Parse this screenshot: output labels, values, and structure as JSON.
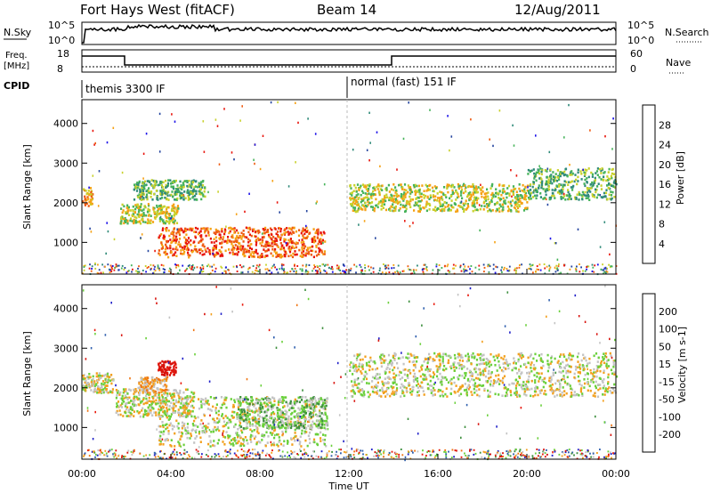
{
  "header": {
    "station": "Fort Hays West (fitACF)",
    "beam": "Beam 14",
    "date": "12/Aug/2011"
  },
  "top_panels": {
    "nsky_label": "N.Sky",
    "nsky_tick_top": "10^5",
    "nsky_tick_bottom": "10^0",
    "nsearch_label": "N.Search",
    "freq_label_1": "Freq.",
    "freq_label_2": "[MHz]",
    "freq_tick_top": "18",
    "freq_tick_bottom": "8",
    "nave_label": "Nave",
    "nave_tick_top": "60",
    "nave_tick_bottom": "0",
    "cpid_label": "CPID",
    "cpid_1": "themis 3300 IF",
    "cpid_2": "normal (fast) 151 IF"
  },
  "chart_data": [
    {
      "type": "heatmap",
      "name": "power",
      "ylabel": "Slant Range [km]",
      "xlabel": "Time UT",
      "yticks": [
        "1000",
        "2000",
        "3000",
        "4000"
      ],
      "ylim": [
        200,
        4600
      ],
      "colorbar_label": "Power [dB]",
      "colorbar_ticks": [
        "4",
        "8",
        "12",
        "16",
        "20",
        "24",
        "28"
      ],
      "colors": [
        "#1b10e8",
        "#24449e",
        "#2f8a79",
        "#46b35a",
        "#c8d12b",
        "#f5a114",
        "#ef5b12",
        "#e8130b"
      ],
      "series": [
        {
          "t0": 0.0,
          "t1": 0.45,
          "r0": 1900,
          "r1": 2400,
          "level": 5
        },
        {
          "t0": 1.7,
          "t1": 4.3,
          "r0": 1500,
          "r1": 2000,
          "level": 4
        },
        {
          "t0": 2.3,
          "t1": 5.5,
          "r0": 2100,
          "r1": 2600,
          "level": 3
        },
        {
          "t0": 3.4,
          "t1": 10.9,
          "r0": 650,
          "r1": 1400,
          "level": 6
        },
        {
          "t0": 12.0,
          "t1": 20.0,
          "r0": 1800,
          "r1": 2500,
          "level": 4
        },
        {
          "t0": 20.0,
          "t1": 24.0,
          "r0": 2100,
          "r1": 2900,
          "level": 3
        }
      ]
    },
    {
      "type": "heatmap",
      "name": "velocity",
      "ylabel": "Slant Range [km]",
      "xlabel": "Time UT",
      "yticks": [
        "1000",
        "2000",
        "3000",
        "4000"
      ],
      "ylim": [
        200,
        4600
      ],
      "colorbar_label": "Velocity [m s-1]",
      "colorbar_ticks": [
        "200",
        "100",
        "50",
        "15",
        "-15",
        "-50",
        "-100",
        "-200"
      ],
      "colors": [
        "#1e1ec8",
        "#2f5fae",
        "#3d8f3e",
        "#6ad03b",
        "#c3c3c3",
        "#f2a01e",
        "#ef7614",
        "#e81a0c",
        "#d8120c"
      ],
      "series": [
        {
          "t0": 0.0,
          "t1": 1.4,
          "r0": 1900,
          "r1": 2400,
          "level": 4
        },
        {
          "t0": 1.5,
          "t1": 5.0,
          "r0": 1300,
          "r1": 2000,
          "level": 4
        },
        {
          "t0": 3.4,
          "t1": 4.2,
          "r0": 2350,
          "r1": 2700,
          "level": 8
        },
        {
          "t0": 2.5,
          "t1": 3.8,
          "r0": 1900,
          "r1": 2300,
          "level": 5
        },
        {
          "t0": 3.4,
          "t1": 11.0,
          "r0": 550,
          "r1": 1800,
          "level": 4
        },
        {
          "t0": 7.0,
          "t1": 11.0,
          "r0": 1000,
          "r1": 1800,
          "level": 3
        },
        {
          "t0": 12.0,
          "t1": 24.0,
          "r0": 1800,
          "r1": 2900,
          "level": 4
        }
      ]
    }
  ],
  "x_axis": {
    "label": "Time UT",
    "ticks": [
      "00:00",
      "04:00",
      "08:00",
      "12:00",
      "16:00",
      "20:00",
      "00:00"
    ]
  }
}
